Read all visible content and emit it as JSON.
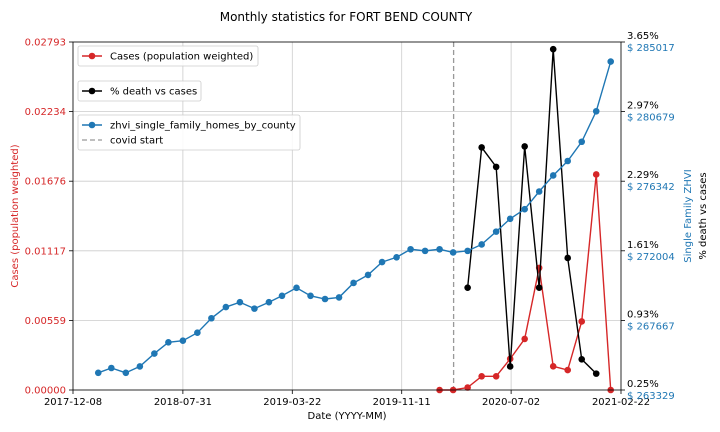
{
  "chart_data": {
    "type": "line",
    "title": "Monthly statistics for FORT BEND COUNTY",
    "xlabel": "Date (YYYY-MM)",
    "ylabel_left": "Cases (population weighted)",
    "ylabel_right_inner": "Single Family ZHVI",
    "ylabel_right_outer": "% death vs cases",
    "x_ticks": [
      "2017-12-08",
      "2018-07-31",
      "2019-03-22",
      "2019-11-11",
      "2020-07-02",
      "2021-02-22"
    ],
    "left_axis": {
      "ticks": [
        "0.00000",
        "0.00559",
        "0.01117",
        "0.01676",
        "0.02234",
        "0.02793"
      ],
      "range": [
        0,
        0.02793
      ],
      "color": "#d62728"
    },
    "right_axis_zhvi": {
      "ticks": [
        "$ 263329",
        "$ 267667",
        "$ 272004",
        "$ 276342",
        "$ 280679",
        "$ 285017"
      ],
      "range": [
        263329,
        285017
      ],
      "color": "#1f77b4"
    },
    "right_axis_death": {
      "ticks": [
        "0.25%",
        "0.93%",
        "1.61%",
        "2.29%",
        "2.97%",
        "3.65%"
      ],
      "range": [
        0.25,
        3.65
      ],
      "color": "#000000"
    },
    "legend": [
      {
        "label": "Cases (population weighted)",
        "color": "#d62728",
        "style": "line-marker"
      },
      {
        "label": "% death vs cases",
        "color": "#000000",
        "style": "line-marker"
      },
      {
        "label": "zhvi_single_family_homes_by_county",
        "color": "#1f77b4",
        "style": "line-marker"
      },
      {
        "label": "covid start",
        "color": "#999999",
        "style": "dashed"
      }
    ],
    "covid_start": "2020-03-01",
    "series": [
      {
        "name": "Cases (population weighted)",
        "axis": "left",
        "color": "#d62728",
        "x": [
          "2020-01-31",
          "2020-02-29",
          "2020-03-31",
          "2020-04-30",
          "2020-05-31",
          "2020-06-30",
          "2020-07-31",
          "2020-08-31",
          "2020-09-30",
          "2020-10-31",
          "2020-11-30",
          "2020-12-31",
          "2021-01-31"
        ],
        "values": [
          0,
          0,
          0.0002,
          0.0011,
          0.0011,
          0.0025,
          0.0041,
          0.0098,
          0.0019,
          0.0016,
          0.0055,
          0.0173,
          0
        ]
      },
      {
        "name": "% death vs cases",
        "axis": "right_death",
        "color": "#000000",
        "x": [
          "2020-03-31",
          "2020-04-30",
          "2020-05-31",
          "2020-06-30",
          "2020-07-31",
          "2020-08-31",
          "2020-09-30",
          "2020-10-31",
          "2020-11-30",
          "2020-12-31"
        ],
        "values": [
          1.25,
          2.62,
          2.43,
          0.48,
          2.63,
          1.25,
          3.58,
          1.54,
          0.55,
          0.41
        ]
      },
      {
        "name": "zhvi_single_family_homes_by_county",
        "axis": "right_zhvi",
        "color": "#1f77b4",
        "x": [
          "2018-01-31",
          "2018-02-28",
          "2018-03-31",
          "2018-04-30",
          "2018-05-31",
          "2018-06-30",
          "2018-07-31",
          "2018-08-31",
          "2018-09-30",
          "2018-10-31",
          "2018-11-30",
          "2018-12-31",
          "2019-01-31",
          "2019-02-28",
          "2019-03-31",
          "2019-04-30",
          "2019-05-31",
          "2019-06-30",
          "2019-07-31",
          "2019-08-31",
          "2019-09-30",
          "2019-10-31",
          "2019-11-30",
          "2019-12-31",
          "2020-01-31",
          "2020-02-29",
          "2020-03-31",
          "2020-04-30",
          "2020-05-31",
          "2020-06-30",
          "2020-07-31",
          "2020-08-31",
          "2020-09-30",
          "2020-10-31",
          "2020-11-30",
          "2020-12-31",
          "2021-01-31"
        ],
        "values": [
          264400,
          264700,
          264400,
          264800,
          265600,
          266300,
          266400,
          266900,
          267800,
          268500,
          268800,
          268400,
          268800,
          269200,
          269700,
          269200,
          269000,
          269100,
          270000,
          270500,
          271300,
          271600,
          272100,
          272000,
          272100,
          271900,
          272000,
          272400,
          273200,
          274000,
          274600,
          275700,
          276700,
          277600,
          278800,
          280700,
          283800
        ]
      }
    ]
  }
}
